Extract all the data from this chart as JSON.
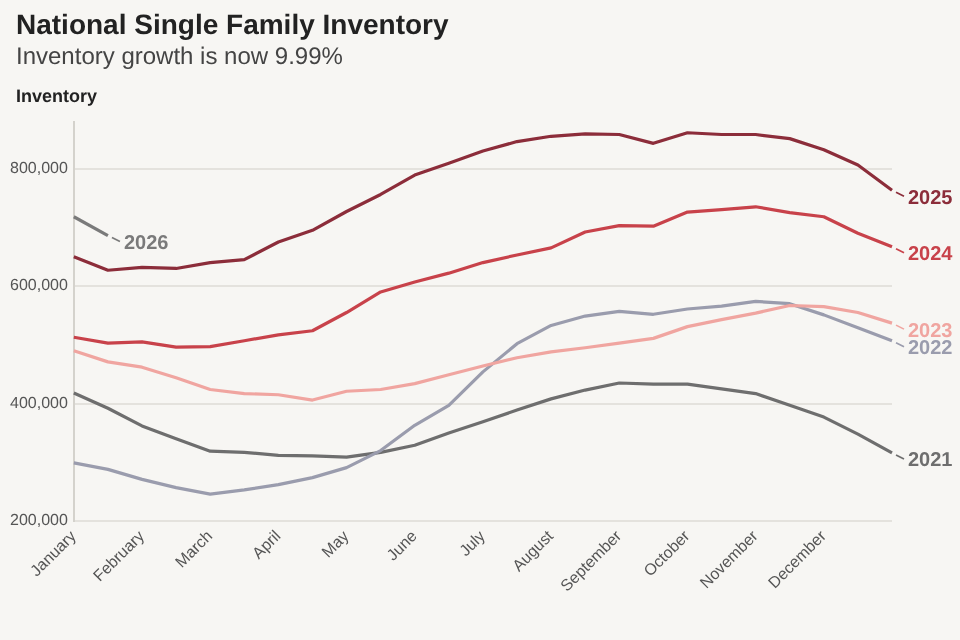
{
  "chart_data": {
    "type": "line",
    "title": "National Single Family Inventory",
    "subtitle": "Inventory growth is now 9.99%",
    "ylabel": "Inventory",
    "categories": [
      "January",
      null,
      "February",
      null,
      "March",
      null,
      "April",
      null,
      "May",
      null,
      "June",
      null,
      "July",
      null,
      "August",
      null,
      "September",
      null,
      "October",
      null,
      "November",
      null,
      "December",
      null,
      null
    ],
    "ylim": [
      200000,
      880000
    ],
    "yticks": [
      {
        "value": 200000,
        "label": "200,000"
      },
      {
        "value": 400000,
        "label": "400,000"
      },
      {
        "value": 600000,
        "label": "600,000"
      },
      {
        "value": 800000,
        "label": "800,000"
      }
    ],
    "grid": "y",
    "legend": "right",
    "marker": "none",
    "line_style": "solid",
    "series": [
      {
        "name": "2025",
        "color": "#8c2d3a",
        "values": [
          650000,
          627000,
          632000,
          630000,
          640000,
          645000,
          675000,
          695000,
          727000,
          756000,
          789000,
          809000,
          830000,
          846000,
          855000,
          859000,
          858000,
          843000,
          861000,
          858000,
          858000,
          851000,
          832000,
          806000,
          763000
        ]
      },
      {
        "name": "2024",
        "color": "#c8424a",
        "values": [
          513000,
          503000,
          505000,
          496000,
          497000,
          507000,
          517000,
          524000,
          555000,
          590000,
          607000,
          622000,
          640000,
          653000,
          665000,
          692000,
          703000,
          702000,
          726000,
          730000,
          735000,
          725000,
          718000,
          690000,
          667000
        ]
      },
      {
        "name": "2023",
        "color": "#f0a5a0",
        "values": [
          490000,
          471000,
          462000,
          444000,
          424000,
          417000,
          415000,
          406000,
          421000,
          424000,
          434000,
          449000,
          464000,
          478000,
          488000,
          495000,
          503000,
          511000,
          531000,
          543000,
          554000,
          567000,
          565000,
          555000,
          537000
        ]
      },
      {
        "name": "2022",
        "color": "#9a9cad",
        "values": [
          299000,
          288000,
          271000,
          257000,
          246000,
          253000,
          262000,
          274000,
          291000,
          320000,
          363000,
          397000,
          454000,
          502000,
          533000,
          549000,
          557000,
          552000,
          561000,
          566000,
          574000,
          570000,
          551000,
          529000,
          507000
        ]
      },
      {
        "name": "2021",
        "color": "#6e6e6e",
        "values": [
          418000,
          392000,
          362000,
          340000,
          319000,
          317000,
          312000,
          311000,
          309000,
          317000,
          329000,
          350000,
          369000,
          389000,
          408000,
          423000,
          435000,
          433000,
          433000,
          425000,
          417000,
          397000,
          377000,
          348000,
          316000
        ]
      },
      {
        "name": "2026",
        "color": "#7a7a7a",
        "values": [
          718000,
          686000,
          null,
          null,
          null,
          null,
          null,
          null,
          null,
          null,
          null,
          null,
          null,
          null,
          null,
          null,
          null,
          null,
          null,
          null,
          null,
          null,
          null,
          null,
          null
        ]
      }
    ]
  }
}
